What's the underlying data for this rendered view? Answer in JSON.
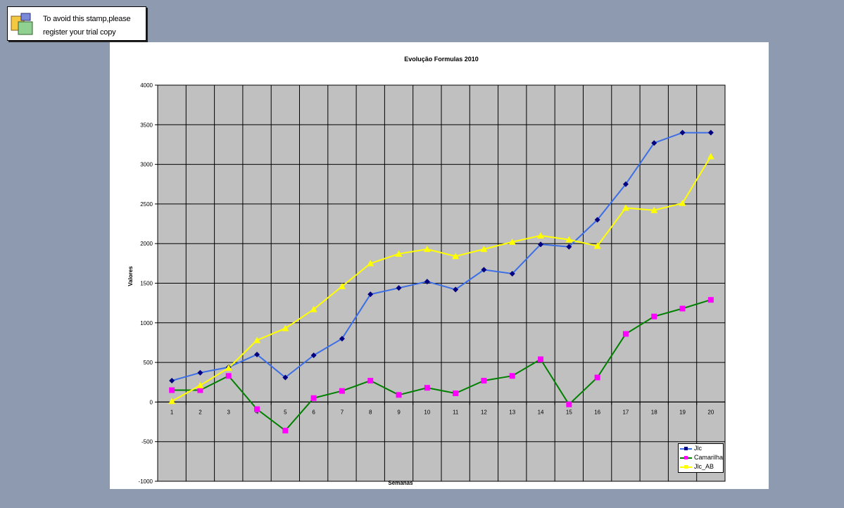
{
  "stamp": {
    "line1": "To avoid this stamp,please",
    "line2": "register your trial copy"
  },
  "chart_data": {
    "type": "line",
    "title": "Evolução Formulas 2010",
    "xlabel": "Semanas",
    "ylabel": "Valores",
    "categories": [
      "1",
      "2",
      "3",
      "4",
      "5",
      "6",
      "7",
      "8",
      "9",
      "10",
      "11",
      "12",
      "13",
      "14",
      "15",
      "16",
      "17",
      "18",
      "19",
      "20"
    ],
    "ylim": [
      -1000,
      4000
    ],
    "yticks": [
      4000,
      3500,
      3000,
      2500,
      2000,
      1500,
      1000,
      500,
      0,
      -500,
      -1000
    ],
    "grid": true,
    "plot_background": "#c0c0c0",
    "legend_position": "bottom-right",
    "series": [
      {
        "name": "Jlc",
        "line_color": "#3c6ee6",
        "marker_color": "#000080",
        "marker": "diamond",
        "values": [
          270,
          370,
          440,
          600,
          310,
          590,
          800,
          1360,
          1440,
          1520,
          1420,
          1670,
          1620,
          1990,
          1960,
          2300,
          2750,
          3270,
          3400,
          3400
        ]
      },
      {
        "name": "Camarilha",
        "line_color": "#008000",
        "marker_color": "#ff00ff",
        "marker": "square",
        "values": [
          150,
          150,
          330,
          -90,
          -360,
          50,
          140,
          270,
          90,
          180,
          110,
          270,
          330,
          540,
          -30,
          310,
          860,
          1080,
          1180,
          1290
        ]
      },
      {
        "name": "Jlc_AB",
        "line_color": "#ffff00",
        "marker_color": "#ffff00",
        "marker": "triangle",
        "values": [
          10,
          210,
          430,
          780,
          930,
          1170,
          1460,
          1750,
          1870,
          1930,
          1840,
          1930,
          2020,
          2100,
          2050,
          1970,
          2450,
          2420,
          2510,
          3100
        ]
      }
    ]
  }
}
